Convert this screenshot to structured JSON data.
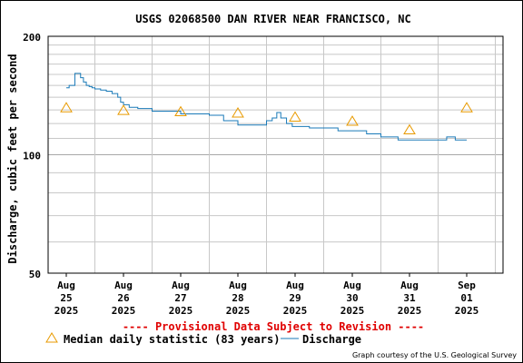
{
  "title": "USGS 02068500 DAN RIVER NEAR FRANCISCO, NC",
  "ylabel": "Discharge, cubic feet per second",
  "provisional_notice": "---- Provisional Data Subject to Revision ----",
  "legend": {
    "median_label": "Median daily statistic (83 years)",
    "discharge_label": "Discharge"
  },
  "credit": "Graph courtesy of the U.S. Geological Survey",
  "colors": {
    "discharge": "#1a7ab8",
    "median": "#e89a00",
    "provisional": "#e00000",
    "grid": "#c8c8c8"
  },
  "chart_data": {
    "type": "line",
    "y_scale": "log",
    "ylim": [
      50,
      200
    ],
    "y_ticks": [
      50,
      100,
      200
    ],
    "x_range": [
      "2025-08-25 00:00",
      "2025-09-01 06:00"
    ],
    "x_ticks": [
      {
        "day": 0,
        "lines": [
          "Aug",
          "25",
          "2025"
        ]
      },
      {
        "day": 1,
        "lines": [
          "Aug",
          "26",
          "2025"
        ]
      },
      {
        "day": 2,
        "lines": [
          "Aug",
          "27",
          "2025"
        ]
      },
      {
        "day": 3,
        "lines": [
          "Aug",
          "28",
          "2025"
        ]
      },
      {
        "day": 4,
        "lines": [
          "Aug",
          "29",
          "2025"
        ]
      },
      {
        "day": 5,
        "lines": [
          "Aug",
          "30",
          "2025"
        ]
      },
      {
        "day": 6,
        "lines": [
          "Aug",
          "31",
          "2025"
        ]
      },
      {
        "day": 7,
        "lines": [
          "Sep",
          "01",
          "2025"
        ]
      }
    ],
    "grid": true,
    "series": [
      {
        "kind": "line",
        "x_days": [
          0.0,
          0.05,
          0.1,
          0.15,
          0.2,
          0.25,
          0.3,
          0.35,
          0.4,
          0.45,
          0.5,
          0.6,
          0.7,
          0.8,
          0.9,
          0.95,
          1.0,
          1.1,
          1.25,
          1.5,
          2.0,
          2.5,
          2.75,
          3.0,
          3.25,
          3.5,
          3.6,
          3.68,
          3.75,
          3.85,
          3.95,
          4.25,
          4.5,
          4.75,
          5.0,
          5.25,
          5.5,
          5.8,
          6.0,
          6.25,
          6.5,
          6.65,
          6.8,
          6.9,
          7.0
        ],
        "values": [
          148,
          150,
          150,
          161,
          161,
          157,
          153,
          150,
          149,
          148,
          147,
          146,
          145,
          143,
          140,
          136,
          134,
          132,
          131,
          129,
          127,
          126,
          122,
          119,
          119,
          122,
          124,
          128,
          124,
          120,
          118,
          117,
          117,
          115,
          115,
          113,
          111,
          109,
          109,
          109,
          109,
          111,
          109,
          109,
          109
        ]
      }
    ],
    "median": {
      "name": "Median daily statistic (83 years)",
      "x_days": [
        0,
        1,
        2,
        3,
        4,
        5,
        6,
        7
      ],
      "values": [
        132,
        130,
        129,
        128,
        125,
        122,
        116,
        132
      ]
    }
  }
}
